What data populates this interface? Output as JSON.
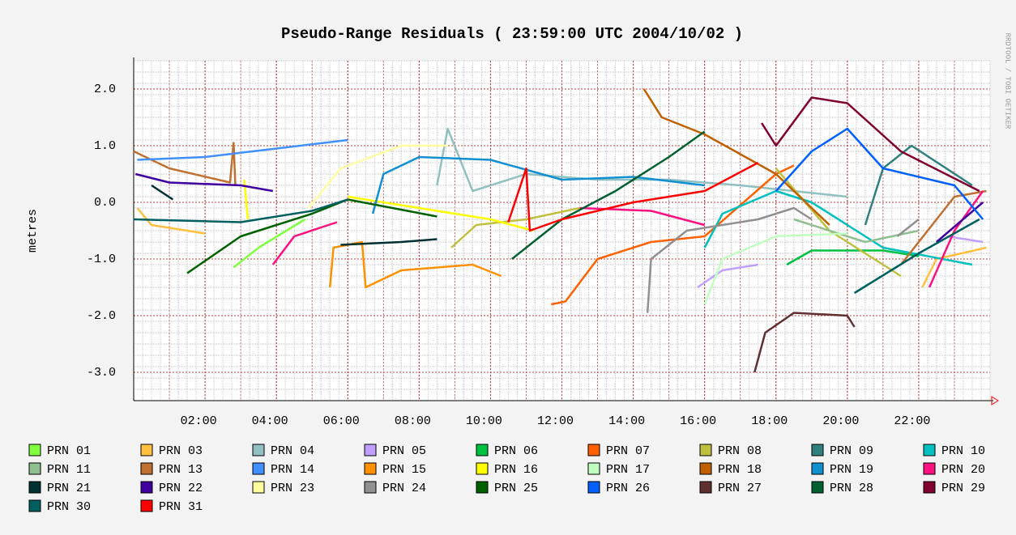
{
  "chart_data": {
    "type": "line",
    "title": "Pseudo-Range Residuals ( 23:59:00 UTC 2004/10/02 )",
    "y_label": "metres",
    "watermark": "RRDTOOL / TOBI OETIKER",
    "xlim": [
      0,
      24
    ],
    "ylim": [
      -3.5,
      2.5
    ],
    "xticks": [
      {
        "value": 2,
        "label": "02:00"
      },
      {
        "value": 4,
        "label": "04:00"
      },
      {
        "value": 6,
        "label": "06:00"
      },
      {
        "value": 8,
        "label": "08:00"
      },
      {
        "value": 10,
        "label": "10:00"
      },
      {
        "value": 12,
        "label": "12:00"
      },
      {
        "value": 14,
        "label": "14:00"
      },
      {
        "value": 16,
        "label": "16:00"
      },
      {
        "value": 18,
        "label": "18:00"
      },
      {
        "value": 20,
        "label": "20:00"
      },
      {
        "value": 22,
        "label": "22:00"
      }
    ],
    "yticks": [
      {
        "value": -3,
        "label": "-3.0"
      },
      {
        "value": -2,
        "label": "-2.0"
      },
      {
        "value": -1,
        "label": "-1.0"
      },
      {
        "value": 0,
        "label": "0.0"
      },
      {
        "value": 1,
        "label": "1.0"
      },
      {
        "value": 2,
        "label": "2.0"
      }
    ],
    "grid": true,
    "series": [
      {
        "name": "PRN 01",
        "color": "#80ff40",
        "x": [
          2.8,
          3.5,
          4.8
        ],
        "values": [
          -1.15,
          -0.8,
          -0.3
        ]
      },
      {
        "name": "PRN 03",
        "color": "#ffc040",
        "x": [
          0.1,
          0.5,
          2,
          null,
          22.1,
          22.5,
          23.9
        ],
        "values": [
          -0.1,
          -0.4,
          -0.55,
          null,
          -1.5,
          -1.0,
          -0.8
        ]
      },
      {
        "name": "PRN 04",
        "color": "#90c0c0",
        "x": [
          8.5,
          8.8,
          9.5,
          11,
          13,
          15,
          17,
          20
        ],
        "values": [
          0.3,
          1.3,
          0.2,
          0.5,
          0.4,
          0.4,
          0.3,
          0.1
        ]
      },
      {
        "name": "PRN 05",
        "color": "#c0a0ff",
        "x": [
          15.8,
          16.5,
          17.5,
          null,
          22.8,
          23.8
        ],
        "values": [
          -1.5,
          -1.2,
          -1.1,
          null,
          -0.6,
          -0.7
        ]
      },
      {
        "name": "PRN 06",
        "color": "#00c040",
        "x": [
          18.3,
          19,
          21,
          22
        ],
        "values": [
          -1.1,
          -0.85,
          -0.85,
          -0.95
        ]
      },
      {
        "name": "PRN 07",
        "color": "#ff6000",
        "x": [
          11.7,
          12.1,
          13,
          14.5,
          16,
          18,
          18.5
        ],
        "values": [
          -1.8,
          -1.75,
          -1.0,
          -0.7,
          -0.6,
          0.5,
          0.65
        ]
      },
      {
        "name": "PRN 08",
        "color": "#c0c040",
        "x": [
          8.9,
          9.6,
          11,
          12.5,
          null,
          18,
          19.5,
          21.5
        ],
        "values": [
          -0.8,
          -0.4,
          -0.3,
          -0.1,
          null,
          0.6,
          -0.5,
          -1.3
        ]
      },
      {
        "name": "PRN 09",
        "color": "#308080",
        "x": [
          20.5,
          21,
          21.8,
          23.5
        ],
        "values": [
          -0.4,
          0.6,
          1.0,
          0.3
        ]
      },
      {
        "name": "PRN 10",
        "color": "#00c0c0",
        "x": [
          16,
          16.5,
          18,
          19,
          21,
          23.5
        ],
        "values": [
          -0.8,
          -0.2,
          0.2,
          0.0,
          -0.8,
          -1.1
        ]
      },
      {
        "name": "PRN 11",
        "color": "#90c090",
        "x": [
          18.5,
          20.5,
          22
        ],
        "values": [
          -0.3,
          -0.7,
          -0.5
        ]
      },
      {
        "name": "PRN 13",
        "color": "#c07030",
        "x": [
          0,
          1,
          2.7,
          2.8,
          2.85,
          null,
          21.5,
          23,
          23.9
        ],
        "values": [
          0.9,
          0.6,
          0.35,
          1.05,
          0.3,
          null,
          -1.1,
          0.1,
          0.2
        ]
      },
      {
        "name": "PRN 14",
        "color": "#4090ff",
        "x": [
          0.1,
          2,
          4,
          6
        ],
        "values": [
          0.75,
          0.8,
          0.95,
          1.1
        ]
      },
      {
        "name": "PRN 15",
        "color": "#ff9000",
        "x": [
          5.5,
          5.6,
          6.4,
          6.5,
          7.5,
          9.5,
          10.3
        ],
        "values": [
          -1.5,
          -0.8,
          -0.7,
          -1.5,
          -1.2,
          -1.1,
          -1.3
        ]
      },
      {
        "name": "PRN 16",
        "color": "#ffff00",
        "x": [
          3.1,
          3.2,
          null,
          6,
          8,
          10,
          11.2
        ],
        "values": [
          0.4,
          -0.3,
          null,
          0.1,
          -0.1,
          -0.3,
          -0.5
        ]
      },
      {
        "name": "PRN 17",
        "color": "#c0ffc0",
        "x": [
          16,
          16.5,
          18,
          20
        ],
        "values": [
          -1.8,
          -1.0,
          -0.6,
          -0.55
        ]
      },
      {
        "name": "PRN 18",
        "color": "#c06000",
        "x": [
          14.3,
          14.8,
          16,
          18,
          19,
          19.5
        ],
        "values": [
          2.0,
          1.5,
          1.2,
          0.5,
          -0.1,
          -0.4
        ]
      },
      {
        "name": "PRN 19",
        "color": "#1090d0",
        "x": [
          6.7,
          7,
          8,
          10,
          12,
          14,
          16
        ],
        "values": [
          -0.2,
          0.5,
          0.8,
          0.75,
          0.4,
          0.45,
          0.3
        ]
      },
      {
        "name": "PRN 20",
        "color": "#ff1080",
        "x": [
          3.9,
          4.5,
          5.7,
          null,
          12.5,
          14.5,
          16,
          null,
          22.3,
          23,
          23.8
        ],
        "values": [
          -1.1,
          -0.6,
          -0.35,
          null,
          -0.1,
          -0.15,
          -0.4,
          null,
          -1.5,
          -0.5,
          0.2
        ]
      },
      {
        "name": "PRN 21",
        "color": "#003030",
        "x": [
          0.5,
          1.1,
          null,
          5.8,
          7.5,
          8.5
        ],
        "values": [
          0.3,
          0.05,
          null,
          -0.75,
          -0.7,
          -0.65
        ]
      },
      {
        "name": "PRN 22",
        "color": "#4000a0",
        "x": [
          0.05,
          1,
          3,
          3.9,
          null,
          22.5,
          23.8
        ],
        "values": [
          0.5,
          0.35,
          0.3,
          0.2,
          null,
          -0.7,
          0.0
        ]
      },
      {
        "name": "PRN 23",
        "color": "#ffffa0",
        "x": [
          4.9,
          5.8,
          7.5,
          8.8
        ],
        "values": [
          -0.1,
          0.6,
          1.0,
          1.0
        ]
      },
      {
        "name": "PRN 24",
        "color": "#909090",
        "x": [
          14.4,
          14.5,
          15.5,
          17.5,
          18.5,
          19,
          null,
          21.4,
          22
        ],
        "values": [
          -1.95,
          -1.0,
          -0.5,
          -0.3,
          -0.1,
          -0.3,
          null,
          -0.6,
          -0.3
        ]
      },
      {
        "name": "PRN 25",
        "color": "#006000",
        "x": [
          1.5,
          3,
          5,
          6,
          8.5
        ],
        "values": [
          -1.25,
          -0.6,
          -0.2,
          0.05,
          -0.25
        ]
      },
      {
        "name": "PRN 26",
        "color": "#0060ff",
        "x": [
          18,
          19,
          20,
          21,
          23,
          23.8
        ],
        "values": [
          0.2,
          0.9,
          1.3,
          0.6,
          0.3,
          -0.3
        ]
      },
      {
        "name": "PRN 27",
        "color": "#603030",
        "x": [
          17.4,
          17.7,
          18.5,
          20,
          20.2
        ],
        "values": [
          -3.0,
          -2.3,
          -1.95,
          -2.0,
          -2.2
        ]
      },
      {
        "name": "PRN 28",
        "color": "#006030",
        "x": [
          10.6,
          12,
          13.5,
          15,
          16
        ],
        "values": [
          -1.0,
          -0.3,
          0.2,
          0.8,
          1.25
        ]
      },
      {
        "name": "PRN 29",
        "color": "#800030",
        "x": [
          17.6,
          18,
          19,
          20,
          21.5,
          23.7
        ],
        "values": [
          1.4,
          1.0,
          1.85,
          1.75,
          0.9,
          0.2
        ]
      },
      {
        "name": "PRN 30",
        "color": "#006060",
        "x": [
          0,
          3,
          5,
          6,
          null,
          20.2,
          22,
          23.7
        ],
        "values": [
          -0.3,
          -0.35,
          -0.15,
          0.05,
          null,
          -1.6,
          -0.9,
          -0.3
        ]
      },
      {
        "name": "PRN 31",
        "color": "#ff0000",
        "x": [
          10.5,
          11,
          11.1,
          12,
          14,
          16,
          17.5
        ],
        "values": [
          -0.35,
          0.6,
          -0.5,
          -0.3,
          0,
          0.2,
          0.7
        ]
      }
    ]
  }
}
